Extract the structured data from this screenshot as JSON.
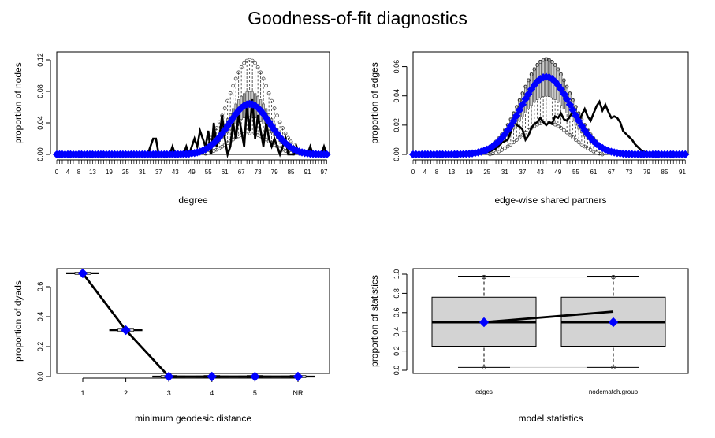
{
  "title": "Goodness-of-fit diagnostics",
  "colors": {
    "model": "#0000ff",
    "observed": "#000000",
    "box_fill": "#d3d3d3"
  },
  "chart_data": [
    {
      "type": "line",
      "xlabel": "degree",
      "ylabel": "proportion of nodes",
      "xlim": [
        0,
        99
      ],
      "ylim": [
        0,
        0.13
      ],
      "yticks": [
        0.0,
        0.04,
        0.08,
        0.12
      ],
      "ytick_labels": [
        "0.00",
        "0.04",
        "0.08",
        "0.12"
      ],
      "xtick_labels": [
        "0",
        "4",
        "8",
        "13",
        "19",
        "25",
        "31",
        "37",
        "43",
        "49",
        "55",
        "61",
        "67",
        "73",
        "79",
        "85",
        "91",
        "97"
      ],
      "model_peak": {
        "x": 70,
        "sd": 7.5,
        "y": 0.064
      },
      "box_upper_peak": 0.12,
      "observed": [
        [
          0,
          0
        ],
        [
          33,
          0
        ],
        [
          35,
          0.02
        ],
        [
          36,
          0.02
        ],
        [
          37,
          0
        ],
        [
          41,
          0
        ],
        [
          42,
          0.01
        ],
        [
          43,
          0
        ],
        [
          46,
          0
        ],
        [
          47,
          0.01
        ],
        [
          48,
          0
        ],
        [
          50,
          0.02
        ],
        [
          51,
          0.01
        ],
        [
          52,
          0.03
        ],
        [
          53,
          0.02
        ],
        [
          54,
          0.01
        ],
        [
          55,
          0.03
        ],
        [
          56,
          0
        ],
        [
          57,
          0.04
        ],
        [
          58,
          0.01
        ],
        [
          59,
          0.02
        ],
        [
          60,
          0.05
        ],
        [
          61,
          0.02
        ],
        [
          62,
          0
        ],
        [
          63,
          0.01
        ],
        [
          64,
          0.04
        ],
        [
          65,
          0.02
        ],
        [
          66,
          0.05
        ],
        [
          67,
          0.03
        ],
        [
          68,
          0.01
        ],
        [
          69,
          0.06
        ],
        [
          70,
          0.03
        ],
        [
          71,
          0.07
        ],
        [
          72,
          0.02
        ],
        [
          73,
          0.05
        ],
        [
          74,
          0.03
        ],
        [
          75,
          0.01
        ],
        [
          76,
          0.04
        ],
        [
          77,
          0.02
        ],
        [
          78,
          0.01
        ],
        [
          79,
          0.02
        ],
        [
          80,
          0.01
        ],
        [
          81,
          0
        ],
        [
          82,
          0.01
        ],
        [
          83,
          0.02
        ],
        [
          84,
          0
        ],
        [
          86,
          0
        ],
        [
          87,
          0.01
        ],
        [
          88,
          0
        ],
        [
          91,
          0
        ],
        [
          92,
          0.01
        ],
        [
          93,
          0
        ],
        [
          96,
          0
        ],
        [
          97,
          0.01
        ],
        [
          98,
          0
        ],
        [
          99,
          0
        ]
      ]
    },
    {
      "type": "line",
      "xlabel": "edge-wise shared partners",
      "ylabel": "proportion of edges",
      "xlim": [
        0,
        93
      ],
      "ylim": [
        0,
        0.07
      ],
      "yticks": [
        0.0,
        0.02,
        0.04,
        0.06
      ],
      "ytick_labels": [
        "0.00",
        "0.02",
        "0.04",
        "0.06"
      ],
      "xtick_labels": [
        "0",
        "4",
        "8",
        "13",
        "19",
        "25",
        "31",
        "37",
        "43",
        "49",
        "55",
        "61",
        "67",
        "73",
        "79",
        "85",
        "91"
      ],
      "model_peak": {
        "x": 45,
        "sd": 8.5,
        "y": 0.053
      },
      "box_upper_peak": 0.065,
      "observed": [
        [
          0,
          0
        ],
        [
          22,
          0
        ],
        [
          24,
          0.001
        ],
        [
          26,
          0.002
        ],
        [
          28,
          0.004
        ],
        [
          30,
          0.008
        ],
        [
          32,
          0.01
        ],
        [
          33,
          0.015
        ],
        [
          34,
          0.024
        ],
        [
          35,
          0.02
        ],
        [
          36,
          0.019
        ],
        [
          37,
          0.017
        ],
        [
          38,
          0.01
        ],
        [
          39,
          0.013
        ],
        [
          40,
          0.018
        ],
        [
          41,
          0.021
        ],
        [
          42,
          0.022
        ],
        [
          43,
          0.025
        ],
        [
          44,
          0.022
        ],
        [
          45,
          0.02
        ],
        [
          46,
          0.022
        ],
        [
          47,
          0.021
        ],
        [
          48,
          0.026
        ],
        [
          49,
          0.025
        ],
        [
          50,
          0.028
        ],
        [
          51,
          0.024
        ],
        [
          52,
          0.023
        ],
        [
          53,
          0.026
        ],
        [
          54,
          0.029
        ],
        [
          55,
          0.025
        ],
        [
          56,
          0.022
        ],
        [
          57,
          0.027
        ],
        [
          58,
          0.031
        ],
        [
          59,
          0.026
        ],
        [
          60,
          0.023
        ],
        [
          61,
          0.028
        ],
        [
          62,
          0.033
        ],
        [
          63,
          0.036
        ],
        [
          64,
          0.03
        ],
        [
          65,
          0.034
        ],
        [
          66,
          0.029
        ],
        [
          67,
          0.025
        ],
        [
          68,
          0.026
        ],
        [
          69,
          0.025
        ],
        [
          70,
          0.022
        ],
        [
          71,
          0.016
        ],
        [
          72,
          0.014
        ],
        [
          73,
          0.012
        ],
        [
          74,
          0.01
        ],
        [
          75,
          0.007
        ],
        [
          76,
          0.005
        ],
        [
          77,
          0.003
        ],
        [
          78,
          0.002
        ],
        [
          79,
          0.001
        ],
        [
          80,
          0
        ],
        [
          93,
          0
        ]
      ]
    },
    {
      "type": "line",
      "xlabel": "minimum geodesic distance",
      "ylabel": "proportion of dyads",
      "categories": [
        "1",
        "2",
        "3",
        "4",
        "5",
        "NR"
      ],
      "ylim": [
        0,
        0.7
      ],
      "yticks": [
        0.0,
        0.2,
        0.4,
        0.6
      ],
      "ytick_labels": [
        "0.0",
        "0.2",
        "0.4",
        "0.6"
      ],
      "observed": [
        0.69,
        0.31,
        0,
        0,
        0,
        0
      ],
      "model": [
        0.69,
        0.31,
        0,
        0,
        0,
        0
      ]
    },
    {
      "type": "box",
      "xlabel": "model statistics",
      "ylabel": "proportion of statistics",
      "categories": [
        "edges",
        "nodematch.group"
      ],
      "ylim": [
        0,
        1
      ],
      "yticks": [
        0.0,
        0.2,
        0.4,
        0.6,
        0.8,
        1.0
      ],
      "ytick_labels": [
        "0.0",
        "0.2",
        "0.4",
        "0.6",
        "0.8",
        "1.0"
      ],
      "boxes": [
        {
          "min": 0.03,
          "q1": 0.25,
          "median": 0.5,
          "q3": 0.76,
          "max": 0.98,
          "outlier_low": 0.03,
          "outlier_high": 0.97
        },
        {
          "min": 0.03,
          "q1": 0.25,
          "median": 0.5,
          "q3": 0.76,
          "max": 0.98,
          "outlier_low": 0.03,
          "outlier_high": 0.97
        }
      ],
      "observed": [
        0.5,
        0.61
      ],
      "model": [
        0.5,
        0.5
      ]
    }
  ]
}
